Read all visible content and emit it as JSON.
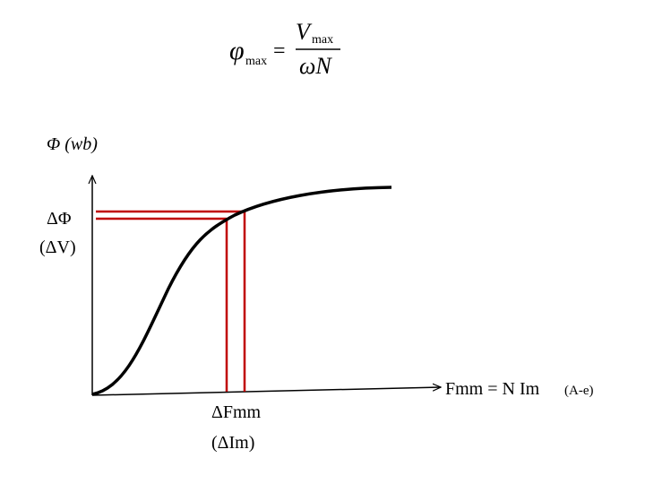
{
  "formula": {
    "lhs": "φ",
    "lhs_sub": "max",
    "equals": "=",
    "numerator": "V",
    "numerator_sub": "max",
    "denominator": "ωN"
  },
  "axes": {
    "y_label": "Φ (wb)",
    "x_label": "Fmm =  N Im",
    "x_unit": "(A-e)"
  },
  "annotations": {
    "delta_phi": "ΔΦ",
    "delta_v": "(ΔV)",
    "delta_fmm": "ΔFmm",
    "delta_im": "(ΔIm)"
  }
}
